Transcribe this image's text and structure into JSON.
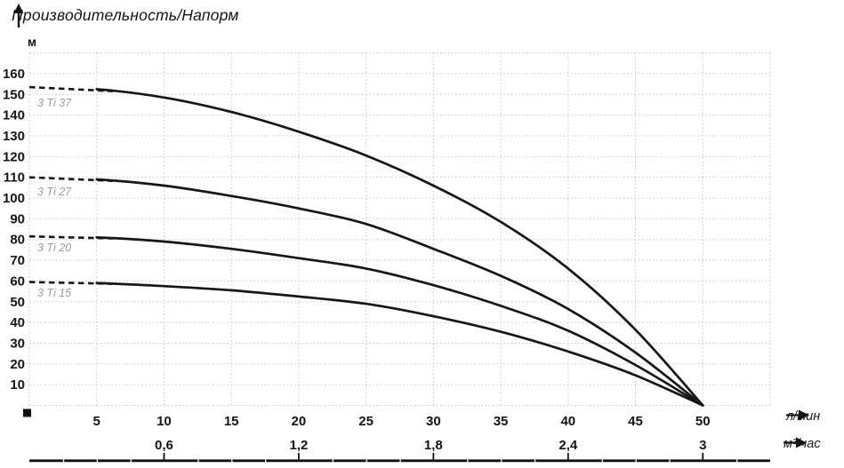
{
  "header": {
    "title": "Производительность/Напорм"
  },
  "chart_data": {
    "type": "line",
    "title": "Производительность/Напорм",
    "ylabel": "м",
    "xlabel_primary": "л/мин",
    "xlabel_secondary": "м³/час",
    "xlim": [
      0,
      55
    ],
    "ylim": [
      0,
      170
    ],
    "grid": true,
    "x": [
      0,
      5,
      10,
      15,
      20,
      25,
      30,
      35,
      40,
      45,
      50
    ],
    "series": [
      {
        "name": "3 Ti 37",
        "values": [
          153.5,
          152.5,
          148.5,
          141.5,
          132,
          120.5,
          106,
          88.5,
          66,
          36.5,
          0
        ]
      },
      {
        "name": "3 Ti 27",
        "values": [
          110,
          109,
          106,
          101,
          95,
          87.5,
          75.5,
          62.5,
          46.5,
          25.5,
          0
        ]
      },
      {
        "name": "3 Ti 20",
        "values": [
          81.5,
          81,
          79,
          75.5,
          71,
          66,
          58,
          48,
          36,
          19.5,
          0
        ]
      },
      {
        "name": "3 Ti 15",
        "values": [
          59.5,
          59,
          57.5,
          55.5,
          52.5,
          49,
          43,
          35.5,
          26,
          14.5,
          0
        ]
      }
    ],
    "y_ticks": [
      10,
      20,
      30,
      40,
      50,
      60,
      70,
      80,
      90,
      100,
      110,
      120,
      130,
      140,
      150,
      160
    ],
    "x_ticks_primary": [
      5,
      10,
      15,
      20,
      25,
      30,
      35,
      40,
      45,
      50
    ],
    "x_ticks_secondary": [
      {
        "label": "0,6",
        "at": 10
      },
      {
        "label": "1,2",
        "at": 20
      },
      {
        "label": "1,8",
        "at": 30
      },
      {
        "label": "2,4",
        "at": 40
      },
      {
        "label": "3",
        "at": 50
      }
    ],
    "dashed_lead_end_x": 6.2,
    "colors": {
      "curve": "#161616",
      "grid": "#c5c5c5",
      "tick_text": "#141414",
      "series_label": "#9c9c9c"
    }
  }
}
